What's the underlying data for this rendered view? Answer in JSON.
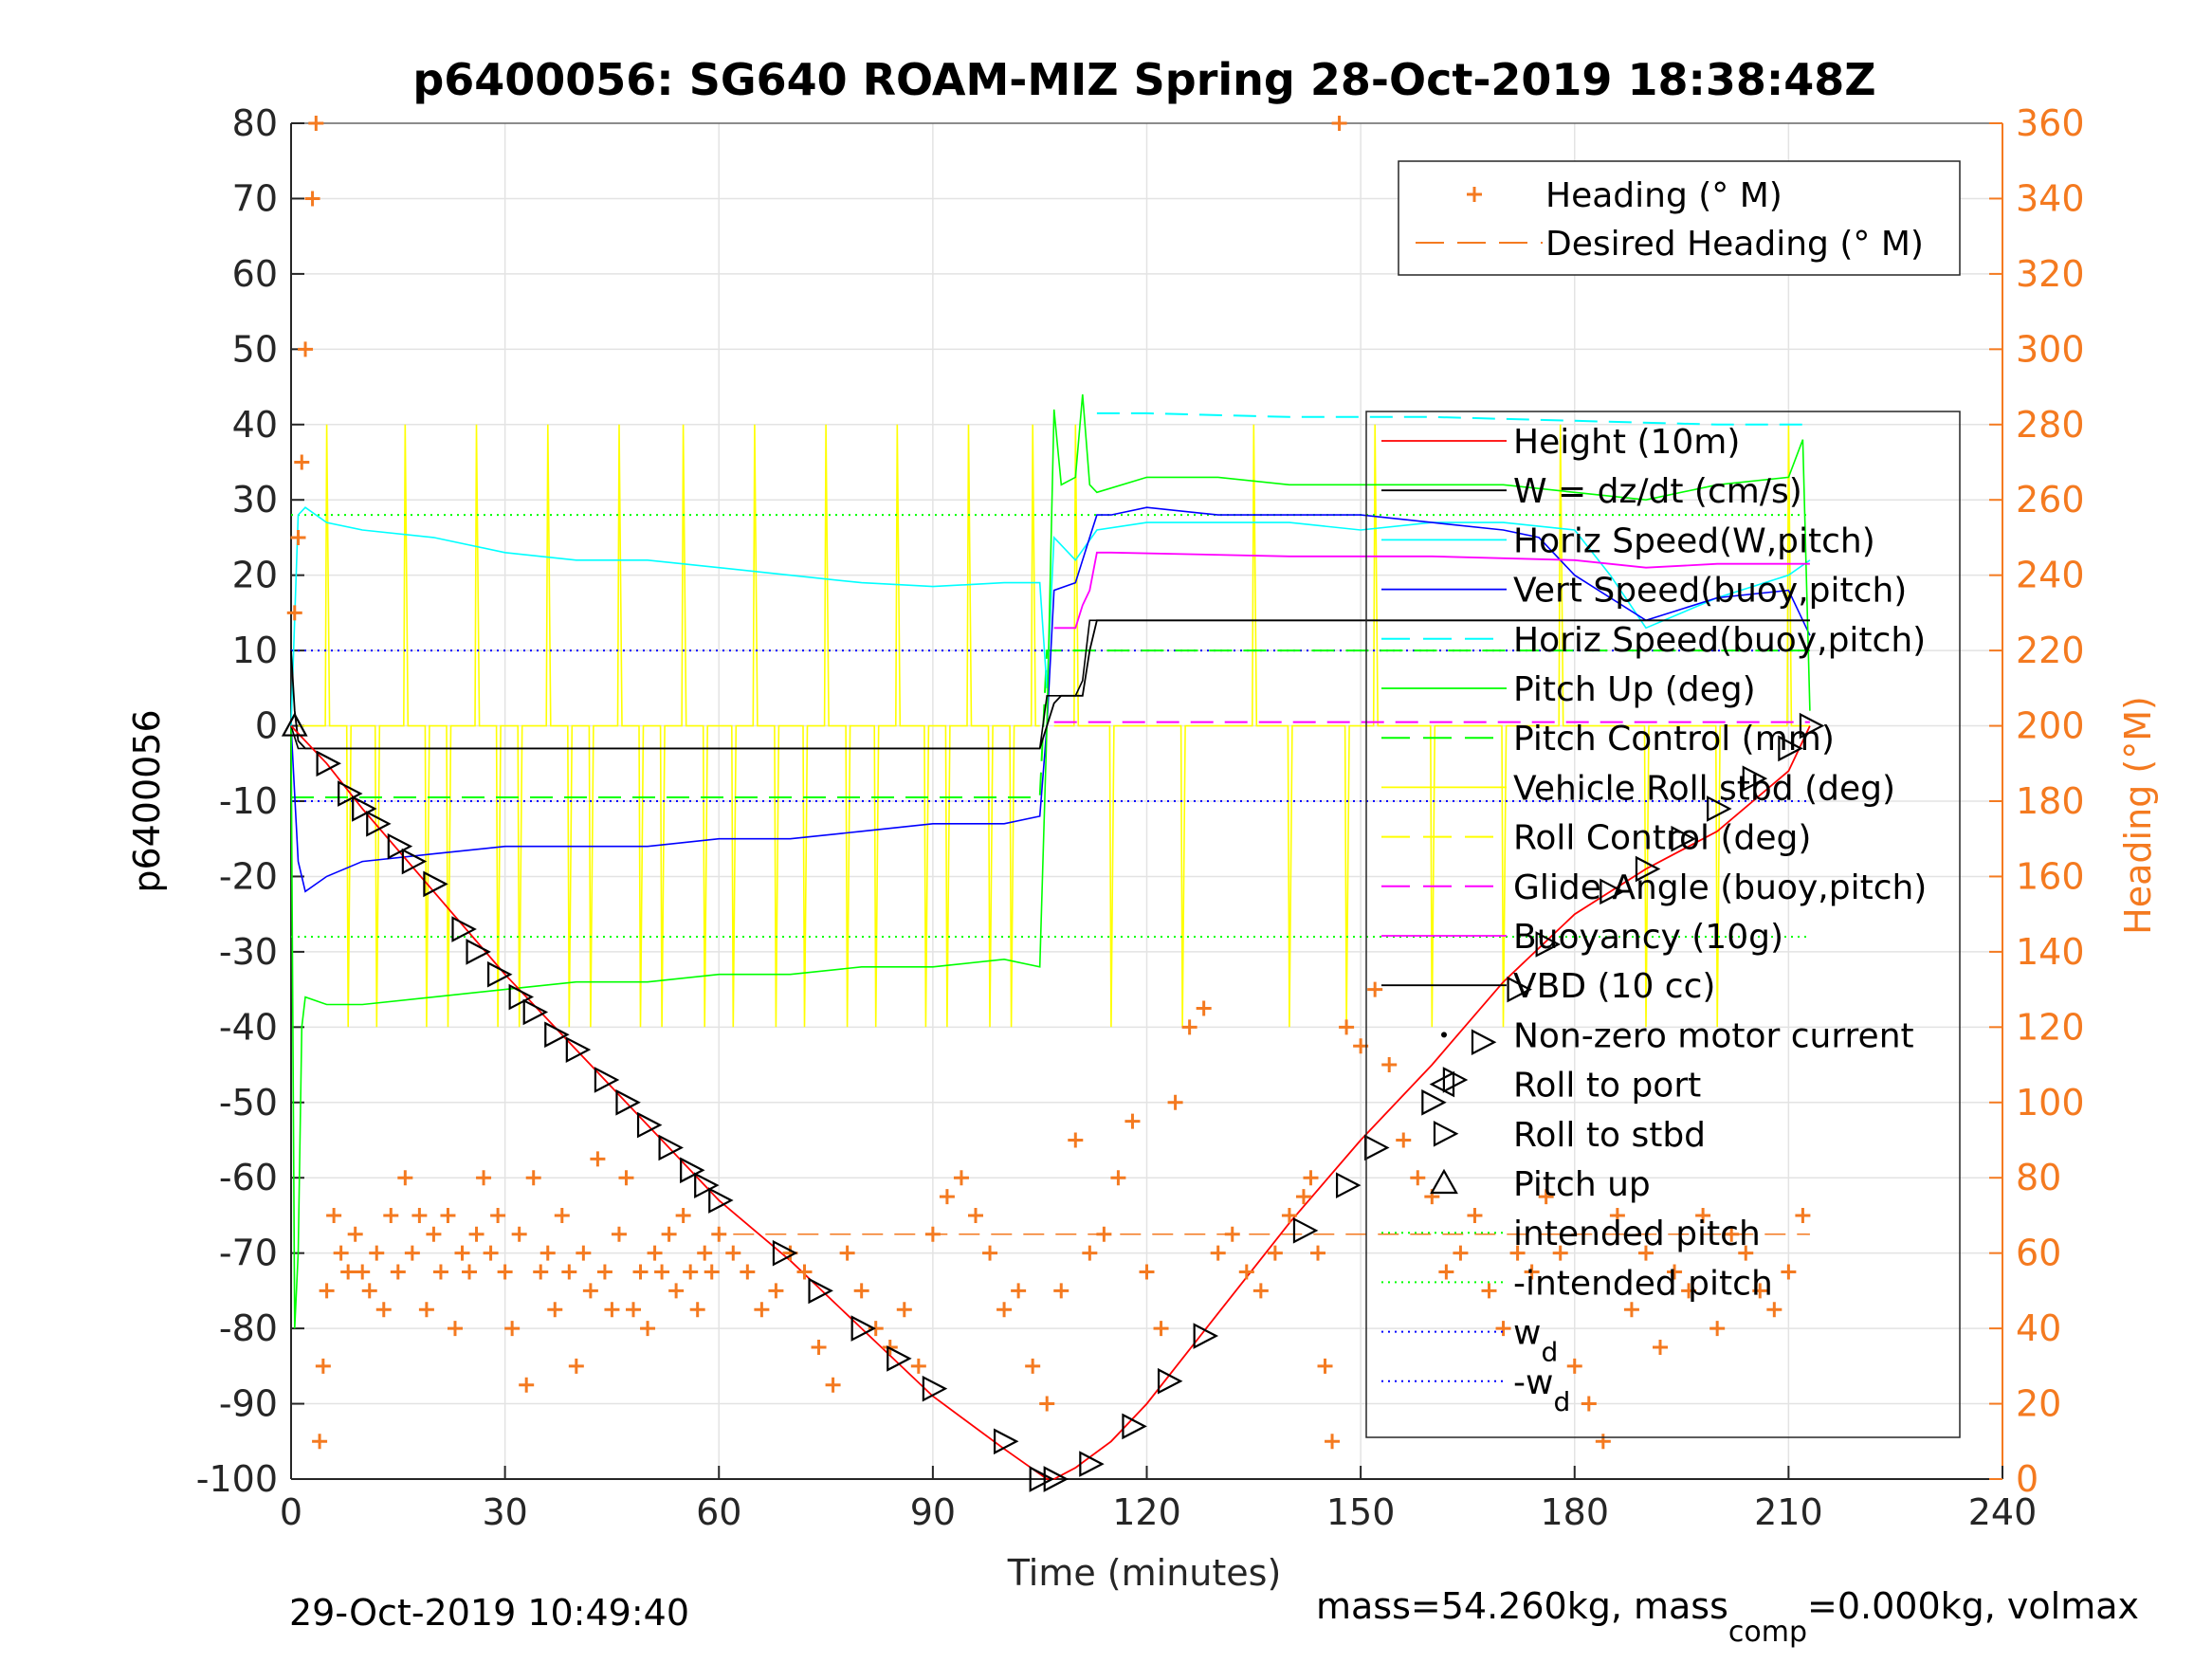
{
  "chart_data": {
    "type": "line",
    "title": "p6400056: SG640 ROAM-MIZ Spring 28-Oct-2019 18:38:48Z",
    "xlabel": "Time (minutes)",
    "ylabel": "p6400056",
    "y2label": "Heading (°M)",
    "xlim": [
      0,
      240
    ],
    "ylim": [
      -100,
      80
    ],
    "y2lim": [
      0,
      360
    ],
    "xticks": [
      0,
      30,
      60,
      90,
      120,
      150,
      180,
      210,
      240
    ],
    "yticks": [
      -100,
      -90,
      -80,
      -70,
      -60,
      -50,
      -40,
      -30,
      -20,
      -10,
      0,
      10,
      20,
      30,
      40,
      50,
      60,
      70,
      80
    ],
    "y2ticks": [
      0,
      20,
      40,
      60,
      80,
      100,
      120,
      140,
      160,
      180,
      200,
      220,
      240,
      260,
      280,
      300,
      320,
      340,
      360
    ],
    "grid": true,
    "footer_left": "29-Oct-2019 10:49:40",
    "footer_right": {
      "prefix": "mass=54.260kg, mass",
      "subscript": "comp",
      "suffix": "=0.000kg, volmax"
    },
    "legend_heading": [
      {
        "label": "Heading (° M)",
        "color": "#f47a20",
        "style": "plus"
      },
      {
        "label": "Desired Heading (° M)",
        "color": "#f47a20",
        "style": "dash"
      }
    ],
    "legend_main": [
      {
        "label": "Height (10m)",
        "color": "#ff0000",
        "style": "solid"
      },
      {
        "label": "W = dz/dt (cm/s)",
        "color": "#000000",
        "style": "solid"
      },
      {
        "label": "Horiz Speed(W,pitch)",
        "color": "#00ffff",
        "style": "solid"
      },
      {
        "label": "Vert Speed(buoy,pitch)",
        "color": "#0000ff",
        "style": "solid"
      },
      {
        "label": "Horiz Speed(buoy,pitch)",
        "color": "#00ffff",
        "style": "dash"
      },
      {
        "label": "Pitch Up (deg)",
        "color": "#00ff00",
        "style": "solid"
      },
      {
        "label": "Pitch Control (mm)",
        "color": "#00ff00",
        "style": "dash"
      },
      {
        "label": "Vehicle Roll stbd (deg)",
        "color": "#ffff00",
        "style": "solid"
      },
      {
        "label": "Roll Control (deg)",
        "color": "#ffff00",
        "style": "dash"
      },
      {
        "label": "Glide Angle (buoy,pitch)",
        "color": "#ff00ff",
        "style": "dash"
      },
      {
        "label": "Buoyancy (10g)",
        "color": "#ff00ff",
        "style": "solid"
      },
      {
        "label": "VBD (10 cc)",
        "color": "#000000",
        "style": "solid"
      },
      {
        "label": "Non-zero motor current",
        "color": "#000000",
        "style": "dot"
      },
      {
        "label": "Roll to port",
        "color": "#000000",
        "style": "tri-left"
      },
      {
        "label": "Roll to stbd",
        "color": "#000000",
        "style": "tri-right"
      },
      {
        "label": "Pitch up",
        "color": "#000000",
        "style": "tri-up"
      },
      {
        "label": "intended pitch",
        "color": "#00ff00",
        "style": "dotted"
      },
      {
        "label": "-intended pitch",
        "color": "#00ff00",
        "style": "dotted"
      },
      {
        "label": "w",
        "sub": "d",
        "color": "#0000ff",
        "style": "dotted"
      },
      {
        "label": "-w",
        "sub": "d",
        "color": "#0000ff",
        "style": "dotted"
      }
    ],
    "colors": {
      "height": "#ff0000",
      "w": "#000000",
      "horiz_speed": "#00ffff",
      "vert_speed": "#0000ff",
      "pitch": "#00ff00",
      "roll": "#ffff00",
      "glide": "#ff00ff",
      "buoyancy": "#ff00ff",
      "vbd": "#000000",
      "heading": "#f47a20"
    },
    "series": [
      {
        "name": "Height (10m)",
        "key": "height",
        "x": [
          0,
          5,
          10,
          20,
          30,
          40,
          50,
          60,
          70,
          80,
          90,
          100,
          106,
          107,
          110,
          115,
          120,
          130,
          140,
          150,
          160,
          170,
          180,
          190,
          200,
          210,
          213
        ],
        "y": [
          0,
          -5,
          -11,
          -22,
          -33,
          -43,
          -53,
          -63,
          -71,
          -80,
          -89,
          -96,
          -100,
          -100,
          -98.5,
          -95,
          -90,
          -78,
          -66,
          -55,
          -45,
          -34,
          -25,
          -19,
          -14,
          -6,
          0
        ]
      },
      {
        "name": "W = dz/dt (cm/s)",
        "key": "w",
        "x": [
          0,
          0.5,
          1,
          2,
          5,
          20,
          60,
          100,
          105,
          106,
          107,
          108,
          110,
          111,
          112,
          113,
          120,
          160,
          190,
          213
        ],
        "y": [
          10,
          2,
          -2,
          -3,
          -3,
          -3,
          -3,
          -3,
          -3,
          0,
          3,
          4,
          4,
          4,
          10,
          14,
          14,
          14,
          14,
          14
        ]
      },
      {
        "name": "Horiz Speed(W,pitch)",
        "key": "horiz_speed",
        "x": [
          0,
          1,
          2,
          5,
          10,
          20,
          30,
          40,
          50,
          60,
          70,
          80,
          90,
          100,
          105,
          106,
          107,
          108,
          110,
          113,
          120,
          130,
          140,
          150,
          160,
          170,
          180,
          185,
          190,
          200,
          210,
          213
        ],
        "y": [
          0,
          28,
          29,
          27,
          26,
          25,
          23,
          22,
          22,
          21,
          20,
          19,
          18.5,
          19,
          19,
          5,
          25,
          24,
          22,
          26,
          27,
          27,
          27,
          26,
          27,
          27,
          26,
          20,
          13,
          17,
          20,
          22
        ]
      },
      {
        "name": "Vert Speed(buoy,pitch)",
        "key": "vert_speed",
        "x": [
          0,
          1,
          2,
          5,
          10,
          20,
          30,
          40,
          50,
          60,
          70,
          80,
          90,
          100,
          105,
          106,
          107,
          110,
          112,
          113,
          115,
          120,
          130,
          140,
          150,
          160,
          170,
          175,
          180,
          190,
          200,
          210,
          213
        ],
        "y": [
          0,
          -18,
          -22,
          -20,
          -18,
          -17,
          -16,
          -16,
          -16,
          -15,
          -15,
          -14,
          -13,
          -13,
          -12,
          0,
          18,
          19,
          25,
          28,
          28,
          29,
          28,
          28,
          28,
          27,
          26,
          25,
          20,
          14,
          17,
          18,
          12
        ]
      },
      {
        "name": "Horiz Speed(buoy,pitch)",
        "key": "horiz_speed_buoy",
        "x": [
          113,
          120,
          140,
          160,
          180,
          200,
          213
        ],
        "y": [
          41.5,
          41.5,
          41,
          41,
          40.5,
          40,
          40
        ]
      },
      {
        "name": "Pitch Up (deg)",
        "key": "pitch",
        "x": [
          0,
          0.5,
          1,
          1.5,
          2,
          5,
          10,
          20,
          30,
          40,
          50,
          60,
          70,
          80,
          90,
          100,
          105,
          106,
          107,
          108,
          110,
          111,
          112,
          113,
          120,
          130,
          140,
          150,
          160,
          170,
          180,
          190,
          200,
          210,
          212,
          213
        ],
        "y": [
          0,
          -80,
          -70,
          -40,
          -36,
          -37,
          -37,
          -36,
          -35,
          -34,
          -34,
          -33,
          -33,
          -32,
          -32,
          -31,
          -32,
          0,
          42,
          32,
          33,
          44,
          32,
          31,
          33,
          33,
          32,
          32,
          32,
          32,
          31,
          30,
          32,
          33,
          38,
          2
        ]
      },
      {
        "name": "Pitch Control (mm)",
        "key": "pitch_control",
        "x": [
          0,
          105,
          106,
          213
        ],
        "y": [
          -9.5,
          -9.5,
          10,
          10
        ]
      },
      {
        "name": "Glide Angle (buoy,pitch)",
        "key": "glide",
        "x": [
          107,
          213
        ],
        "y": [
          0.5,
          0.5
        ]
      },
      {
        "name": "Buoyancy (10g)",
        "key": "buoyancy",
        "x": [
          107,
          110,
          111,
          112,
          113,
          115,
          140,
          160,
          180,
          190,
          200,
          213
        ],
        "y": [
          13,
          13,
          16,
          18,
          23,
          23,
          22.5,
          22.5,
          22,
          21,
          21.5,
          21.5
        ]
      },
      {
        "name": "VBD (10 cc)",
        "key": "vbd",
        "x": [
          0,
          1,
          2,
          105,
          106,
          110,
          111,
          112,
          213
        ],
        "y": [
          0,
          -3,
          -3,
          -3,
          4,
          4,
          6,
          14,
          14
        ]
      }
    ],
    "roll": {
      "baseline_down": 0,
      "baseline_up": 0,
      "down_spike_x": [
        5,
        8,
        12,
        16,
        19,
        22,
        26,
        29,
        32,
        36,
        39,
        42,
        46,
        49,
        52,
        55,
        58,
        62,
        65,
        68,
        72,
        75,
        78,
        82,
        85,
        89,
        92,
        95,
        98,
        101,
        104
      ],
      "up_spike_x": [
        110,
        115,
        125,
        135,
        140,
        148,
        152,
        160,
        170,
        178,
        190,
        200,
        210
      ],
      "down_min": -40,
      "up_min": -40,
      "up_spikes_to": 40
    },
    "ref_lines": [
      {
        "name": "intended pitch",
        "y": 28,
        "color": "#00ff00"
      },
      {
        "name": "-intended pitch",
        "y": -28,
        "color": "#00ff00"
      },
      {
        "name": "w_d",
        "y": 10,
        "color": "#0000ff"
      },
      {
        "name": "-w_d",
        "y": -10,
        "color": "#0000ff"
      }
    ],
    "desired_heading": {
      "value": 65,
      "x_from": 62,
      "x_to": 213
    },
    "heading": {
      "x": [
        0.5,
        1,
        1.5,
        2,
        3,
        3.5,
        4,
        4.5,
        5,
        6,
        7,
        8,
        9,
        10,
        11,
        12,
        13,
        14,
        15,
        16,
        17,
        18,
        19,
        20,
        21,
        22,
        23,
        24,
        25,
        26,
        27,
        28,
        29,
        30,
        31,
        32,
        33,
        34,
        35,
        36,
        37,
        38,
        39,
        40,
        41,
        42,
        43,
        44,
        45,
        46,
        47,
        48,
        49,
        50,
        51,
        52,
        53,
        54,
        55,
        56,
        57,
        58,
        59,
        60,
        62,
        64,
        66,
        68,
        70,
        72,
        74,
        76,
        78,
        80,
        82,
        84,
        86,
        88,
        90,
        92,
        94,
        96,
        98,
        100,
        102,
        104,
        106,
        108,
        110,
        112,
        114,
        116,
        118,
        120,
        122,
        124,
        126,
        128,
        130,
        132,
        134,
        136,
        138,
        140,
        142,
        143,
        144,
        145,
        146,
        147,
        148,
        150,
        152,
        154,
        156,
        158,
        160,
        162,
        164,
        166,
        168,
        170,
        172,
        174,
        176,
        178,
        180,
        182,
        184,
        186,
        188,
        190,
        192,
        194,
        196,
        198,
        200,
        202,
        204,
        206,
        208,
        210,
        212
      ],
      "y": [
        230,
        250,
        270,
        300,
        340,
        360,
        10,
        30,
        50,
        70,
        60,
        55,
        65,
        55,
        50,
        60,
        45,
        70,
        55,
        80,
        60,
        70,
        45,
        65,
        55,
        70,
        40,
        60,
        55,
        65,
        80,
        60,
        70,
        55,
        40,
        65,
        25,
        80,
        55,
        60,
        45,
        70,
        55,
        30,
        60,
        50,
        85,
        55,
        45,
        65,
        80,
        45,
        55,
        40,
        60,
        55,
        65,
        50,
        70,
        55,
        45,
        60,
        55,
        65,
        60,
        55,
        45,
        50,
        60,
        55,
        35,
        25,
        60,
        50,
        40,
        35,
        45,
        30,
        65,
        75,
        80,
        70,
        60,
        45,
        50,
        30,
        20,
        50,
        90,
        60,
        65,
        80,
        95,
        55,
        40,
        100,
        120,
        125,
        60,
        65,
        55,
        50,
        60,
        70,
        75,
        80,
        60,
        30,
        10,
        360,
        120,
        115,
        130,
        110,
        90,
        80,
        75,
        55,
        60,
        70,
        50,
        40,
        60,
        55,
        75,
        60,
        30,
        20,
        10,
        70,
        45,
        60,
        35,
        55,
        50,
        70,
        40,
        65,
        60,
        50,
        45,
        55,
        70
      ]
    },
    "markers": {
      "x": [
        0.5,
        5,
        8,
        10,
        12,
        15,
        17,
        20,
        24,
        26,
        29,
        32,
        34,
        37,
        40,
        44,
        47,
        50,
        53,
        56,
        58,
        60,
        69,
        74,
        80,
        85,
        90,
        100,
        105,
        107,
        112,
        118,
        123,
        128,
        142,
        148,
        152,
        160,
        163,
        167,
        172,
        176,
        185,
        190,
        195,
        200,
        205,
        210,
        213
      ],
      "y": [
        0,
        -5,
        -9,
        -11,
        -13,
        -16,
        -18,
        -21,
        -27,
        -30,
        -33,
        -36,
        -38,
        -41,
        -43,
        -47,
        -50,
        -53,
        -56,
        -59,
        -61,
        -63,
        -70,
        -75,
        -80,
        -84,
        -88,
        -95,
        -100,
        -100,
        -98,
        -93,
        -87,
        -81,
        -67,
        -61,
        -56,
        -50,
        -47,
        -42,
        -35,
        -29,
        -22,
        -19,
        -15,
        -11,
        -7,
        -3,
        0
      ]
    }
  }
}
